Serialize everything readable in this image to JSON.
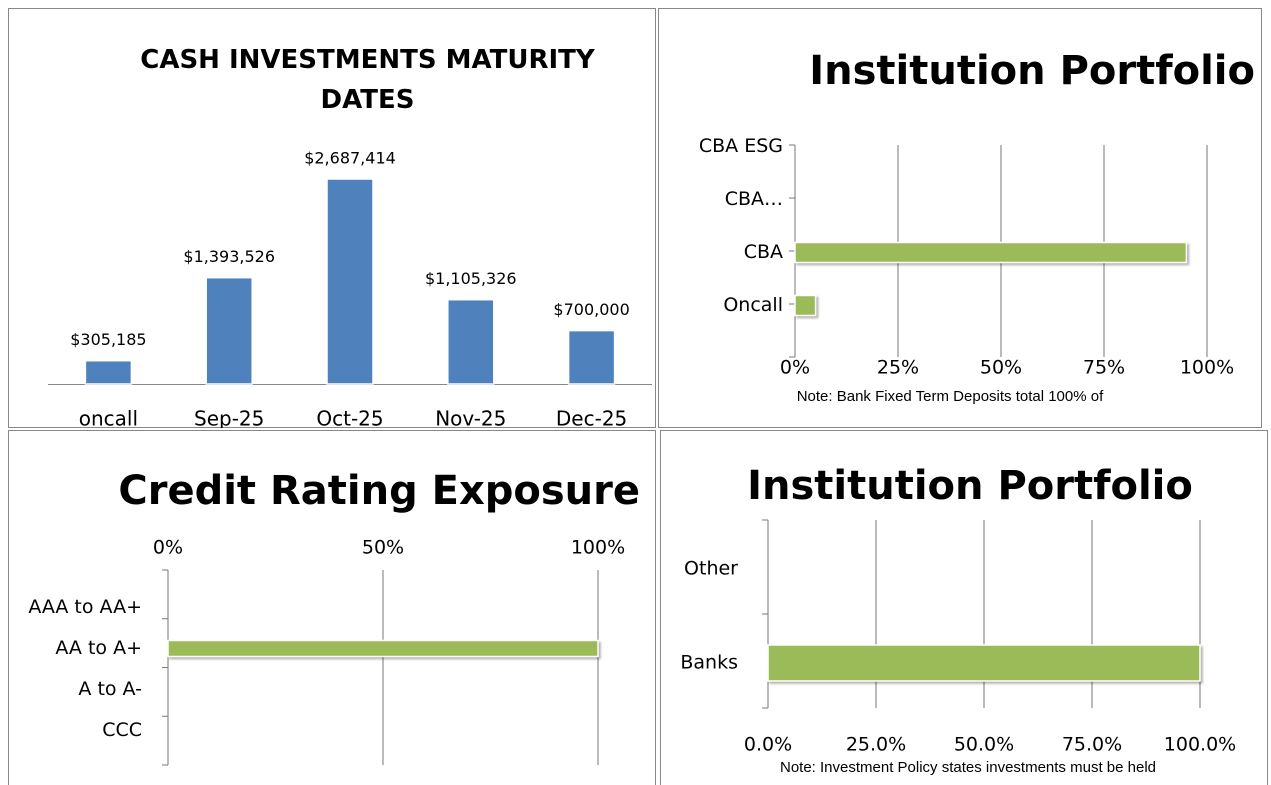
{
  "chart_data": [
    {
      "type": "bar",
      "title": "CASH INVESTMENTS MATURITY DATES",
      "categories": [
        "oncall",
        "Sep-25",
        "Oct-25",
        "Nov-25",
        "Dec-25"
      ],
      "values": [
        305185,
        1393526,
        2687414,
        1105326,
        700000
      ],
      "value_labels": [
        "$305,185",
        "$1,393,526",
        "$2,687,414",
        "$1,105,326",
        "$700,000"
      ],
      "color": "#4f81bd"
    },
    {
      "type": "barh",
      "title": "Institution Portfolio",
      "categories": [
        "CBA ESG",
        "CBA…",
        "CBA",
        "Oncall"
      ],
      "values": [
        0,
        0,
        95,
        5
      ],
      "color": "#9bbb59",
      "xlim": [
        0,
        100
      ],
      "xticks": [
        {
          "value": 0,
          "label": "0%"
        },
        {
          "value": 25,
          "label": "25%"
        },
        {
          "value": 50,
          "label": "50%"
        },
        {
          "value": 75,
          "label": "75%"
        },
        {
          "value": 100,
          "label": "100%"
        }
      ],
      "grid": true,
      "note": "Note: Bank Fixed Term Deposits  total 100% of"
    },
    {
      "type": "barh",
      "title": "Credit Rating Exposure",
      "categories": [
        "AAA to AA+",
        "AA to A+",
        "A to A-",
        "CCC"
      ],
      "values": [
        0,
        100,
        0,
        0
      ],
      "color": "#9bbb59",
      "xlim": [
        0,
        100
      ],
      "xticks": [
        {
          "value": 0,
          "label": "0%"
        },
        {
          "value": 50,
          "label": "50%"
        },
        {
          "value": 100,
          "label": "100%"
        }
      ],
      "grid": true
    },
    {
      "type": "barh",
      "title": "Institution Portfolio",
      "categories": [
        "Other",
        "Banks"
      ],
      "values": [
        0,
        100
      ],
      "color": "#9bbb59",
      "xlim": [
        0,
        100
      ],
      "xticks": [
        {
          "value": 0,
          "label": "0.0%"
        },
        {
          "value": 25,
          "label": "25.0%"
        },
        {
          "value": 50,
          "label": "50.0%"
        },
        {
          "value": 75,
          "label": "75.0%"
        },
        {
          "value": 100,
          "label": "100.0%"
        }
      ],
      "grid": true,
      "note": "Note: Investment Policy states investments must be held"
    }
  ]
}
